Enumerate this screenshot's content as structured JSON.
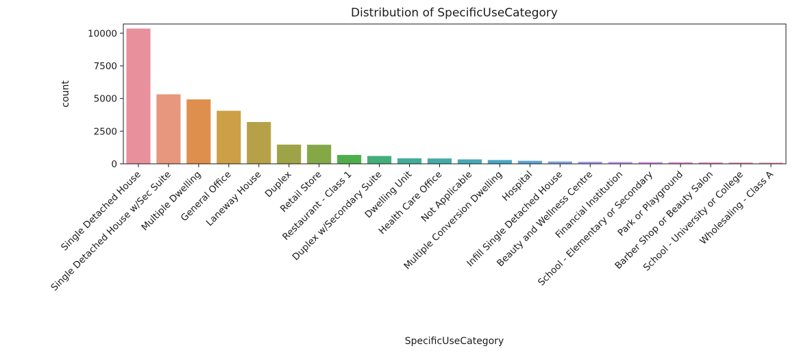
{
  "chart_data": {
    "type": "bar",
    "title": "Distribution of SpecificUseCategory",
    "xlabel": "SpecificUseCategory",
    "ylabel": "count",
    "ylim": [
      0,
      10700
    ],
    "yticks": [
      0,
      2500,
      5000,
      7500,
      10000
    ],
    "grid": false,
    "categories": [
      "Single Detached House",
      "Single Detached House w/Sec Suite",
      "Multiple Dwelling",
      "General Office",
      "Laneway House",
      "Duplex",
      "Retail Store",
      "Restaurant - Class 1",
      "Duplex w/Secondary Suite",
      "Dwelling Unit",
      "Health Care Office",
      "Not Applicable",
      "Multiple Conversion Dwelling",
      "Hospital",
      "Infill Single Detached House",
      "Beauty and Wellness Centre",
      "Financial Institution",
      "School - Elementary or Secondary",
      "Park or Playground",
      "Barber Shop or Beauty Salon",
      "School - University or College",
      "Wholesaling - Class A"
    ],
    "values": [
      10350,
      5320,
      4930,
      4060,
      3200,
      1470,
      1460,
      680,
      600,
      420,
      410,
      340,
      290,
      230,
      180,
      160,
      140,
      130,
      120,
      110,
      100,
      90
    ],
    "colors": [
      "#e8919d",
      "#e7977d",
      "#df8f4d",
      "#cd9f47",
      "#b6a149",
      "#9fa347",
      "#83a845",
      "#4eae4b",
      "#42ae79",
      "#43ac98",
      "#44aaa9",
      "#46a8b6",
      "#48a6c5",
      "#5aa4d6",
      "#7fa2e2",
      "#a3a0ea",
      "#bd99ea",
      "#d08fe6",
      "#dd8ad9",
      "#e58dc5",
      "#e78fb4",
      "#e994a9"
    ]
  }
}
